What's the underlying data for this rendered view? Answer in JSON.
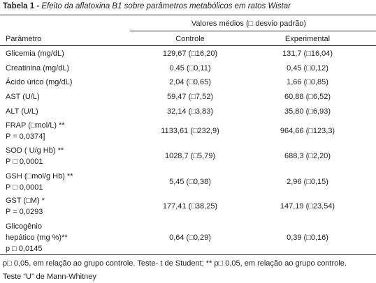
{
  "title": {
    "label": "Tabela 1 -",
    "text": "Efeito da aflatoxina B1 sobre parâmetros metabólicos em ratos Wistar"
  },
  "table": {
    "group_header": "Valores médios (□ desvio padrão)",
    "columns": [
      "Parâmetro",
      "Controle",
      "Experimental"
    ],
    "rows": [
      [
        [
          "Glicemia (mg/dL)"
        ],
        "129,67 (□16,20)",
        "131,7 (□16,04)"
      ],
      [
        [
          "Creatinina (mg/dL)"
        ],
        "0,45 (□0,11)",
        "0,45 (□0,12)"
      ],
      [
        [
          "Ácido úrico (mg/dL)"
        ],
        "2,04 (□0,65)",
        "1,66 (□0,85)"
      ],
      [
        [
          "AST (U/L)"
        ],
        "59,47 (□7,52)",
        "60,88 (□6,52)"
      ],
      [
        [
          "ALT (U/L)"
        ],
        "32,14 (□3,83)",
        "35,80 (□6,93)"
      ],
      [
        [
          "FRAP (□mol/L) **",
          "P = 0,0374]"
        ],
        "1133,61 (□232,9)",
        "964,66 (□123,3)"
      ],
      [
        [
          "SOD ( U/g Hb) **",
          "P □ 0,0001"
        ],
        "1028,7 (□5,79)",
        "688,3 (□2,20)"
      ],
      [
        [
          "GSH (□mol/g Hb) **",
          "P □ 0,0001"
        ],
        "5,45 (□0,38)",
        "2,96 (□0,15)"
      ],
      [
        [
          "GST (□M) *",
          "P = 0,0293"
        ],
        "177,41 (□38,25)",
        "147,19 (□23,54)"
      ],
      [
        [
          "Glicogênio",
          "hepático (mg %)**",
          "p □ 0,0145"
        ],
        "0,64 (□0,29)",
        "0,39 (□0,16)"
      ]
    ]
  },
  "footnotes": [
    "p□ 0,05, em relação ao grupo controle. Teste- t de Student; ** p□ 0,05, em relação ao grupo controle.",
    "Teste “U” de Mann-Whitney"
  ]
}
